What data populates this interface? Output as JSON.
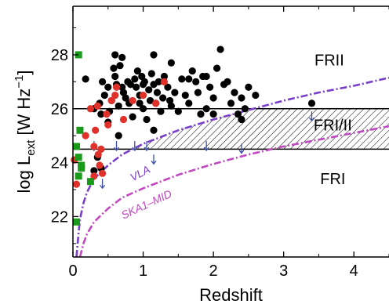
{
  "chart_data": {
    "type": "scatter",
    "xlabel": "Redshift",
    "ylabel": "log L",
    "ylabel_sub": "ext",
    "ylabel_units": " [W Hz",
    "ylabel_exp": "−1",
    "ylabel_close": "]",
    "xlim": [
      0,
      4.5
    ],
    "ylim": [
      20.5,
      29.8
    ],
    "x_ticks": [
      0,
      1,
      2,
      3,
      4
    ],
    "y_ticks": [
      22,
      24,
      26,
      28
    ],
    "x_tick_labels": [
      "0",
      "1",
      "2",
      "3",
      "4"
    ],
    "y_tick_labels": [
      "22",
      "24",
      "26",
      "28"
    ],
    "grid": false,
    "colors": {
      "black_points": "#000000",
      "red_points": "#e0302a",
      "green_points": "#1a9a1a",
      "vla_curve": "#7a3fc8",
      "ska_curve": "#c048c0",
      "arrows": "#3b4fa8",
      "hatch": "#000000"
    },
    "hlines": [
      {
        "y": 26.0
      },
      {
        "y": 24.5
      }
    ],
    "regions": [
      {
        "label": "FRII",
        "x": 3.65,
        "y": 27.6
      },
      {
        "label": "FRI/II",
        "x": 3.7,
        "y": 25.2
      },
      {
        "label": "FRI",
        "x": 3.7,
        "y": 23.2
      }
    ],
    "curves": [
      {
        "name": "VLA",
        "label_x": 0.85,
        "label_y": 23.3,
        "points": [
          [
            0.05,
            20.5
          ],
          [
            0.08,
            21.4
          ],
          [
            0.1,
            21.9
          ],
          [
            0.15,
            22.5
          ],
          [
            0.2,
            22.9
          ],
          [
            0.3,
            23.4
          ],
          [
            0.5,
            23.9
          ],
          [
            0.7,
            24.3
          ],
          [
            1.0,
            24.7
          ],
          [
            1.5,
            25.2
          ],
          [
            2.0,
            25.6
          ],
          [
            2.5,
            25.95
          ],
          [
            3.0,
            26.3
          ],
          [
            3.5,
            26.6
          ],
          [
            4.0,
            26.85
          ],
          [
            4.5,
            27.15
          ]
        ]
      },
      {
        "name": "SKA1–MID",
        "label_x": 0.72,
        "label_y": 21.9,
        "points": [
          [
            0.1,
            20.5
          ],
          [
            0.15,
            21.0
          ],
          [
            0.2,
            21.35
          ],
          [
            0.3,
            21.8
          ],
          [
            0.5,
            22.3
          ],
          [
            0.7,
            22.7
          ],
          [
            1.0,
            23.05
          ],
          [
            1.5,
            23.55
          ],
          [
            2.0,
            23.95
          ],
          [
            2.5,
            24.3
          ],
          [
            3.0,
            24.6
          ],
          [
            3.5,
            24.85
          ],
          [
            4.0,
            25.1
          ],
          [
            4.5,
            25.35
          ]
        ]
      }
    ],
    "series": [
      {
        "marker": "circle",
        "color": "black",
        "points": [
          [
            0.18,
            27.1
          ],
          [
            0.38,
            26.2
          ],
          [
            0.42,
            27.0
          ],
          [
            0.45,
            26.5
          ],
          [
            0.5,
            26.8
          ],
          [
            0.52,
            25.9
          ],
          [
            0.55,
            26.3
          ],
          [
            0.58,
            27.5
          ],
          [
            0.6,
            27.2
          ],
          [
            0.62,
            26.9
          ],
          [
            0.65,
            26.1
          ],
          [
            0.67,
            27.6
          ],
          [
            0.7,
            27.9
          ],
          [
            0.72,
            26.6
          ],
          [
            0.75,
            26.4
          ],
          [
            0.78,
            27.0
          ],
          [
            0.8,
            26.2
          ],
          [
            0.82,
            26.9
          ],
          [
            0.85,
            25.7
          ],
          [
            0.88,
            27.1
          ],
          [
            0.9,
            26.8
          ],
          [
            0.92,
            27.4
          ],
          [
            0.95,
            26.5
          ],
          [
            0.98,
            27.2
          ],
          [
            1.0,
            26.0
          ],
          [
            1.02,
            27.0
          ],
          [
            1.05,
            25.6
          ],
          [
            1.08,
            26.7
          ],
          [
            1.1,
            26.3
          ],
          [
            1.12,
            27.3
          ],
          [
            1.15,
            26.9
          ],
          [
            1.18,
            26.2
          ],
          [
            1.2,
            26.6
          ],
          [
            1.22,
            27.0
          ],
          [
            1.25,
            25.9
          ],
          [
            1.28,
            26.4
          ],
          [
            1.3,
            27.2
          ],
          [
            1.35,
            26.8
          ],
          [
            1.38,
            26.3
          ],
          [
            1.4,
            27.7
          ],
          [
            1.45,
            26.6
          ],
          [
            1.5,
            25.9
          ],
          [
            1.55,
            27.1
          ],
          [
            1.6,
            26.5
          ],
          [
            1.65,
            26.2
          ],
          [
            1.7,
            27.4
          ],
          [
            1.75,
            27.0
          ],
          [
            1.78,
            26.6
          ],
          [
            1.82,
            25.8
          ],
          [
            1.85,
            27.2
          ],
          [
            1.9,
            26.0
          ],
          [
            1.95,
            26.8
          ],
          [
            2.0,
            26.4
          ],
          [
            2.05,
            27.5
          ],
          [
            2.1,
            28.2
          ],
          [
            2.15,
            26.9
          ],
          [
            2.2,
            27.0
          ],
          [
            2.25,
            26.2
          ],
          [
            2.3,
            26.6
          ],
          [
            2.35,
            25.8
          ],
          [
            2.4,
            26.4
          ],
          [
            2.45,
            26.0
          ],
          [
            2.5,
            26.8
          ],
          [
            2.6,
            26.5
          ],
          [
            1.15,
            28.0
          ],
          [
            0.6,
            28.0
          ],
          [
            1.4,
            26.1
          ],
          [
            0.4,
            25.8
          ],
          [
            0.3,
            26.0
          ],
          [
            0.5,
            25.5
          ],
          [
            0.7,
            26.8
          ],
          [
            1.0,
            26.9
          ],
          [
            1.65,
            27.1
          ],
          [
            1.9,
            27.2
          ],
          [
            2.0,
            25.8
          ],
          [
            0.35,
            24.2
          ],
          [
            0.3,
            23.7
          ],
          [
            0.4,
            23.8
          ],
          [
            0.65,
            25.0
          ],
          [
            1.15,
            25.2
          ],
          [
            0.95,
            26.2
          ],
          [
            2.4,
            25.6
          ],
          [
            3.4,
            26.2
          ]
        ]
      },
      {
        "marker": "circle",
        "color": "red",
        "points": [
          [
            0.02,
            24.1
          ],
          [
            0.05,
            23.2
          ],
          [
            0.18,
            25.0
          ],
          [
            0.25,
            26.0
          ],
          [
            0.32,
            25.2
          ],
          [
            0.35,
            26.1
          ],
          [
            0.38,
            23.9
          ],
          [
            0.4,
            24.5
          ],
          [
            0.42,
            23.6
          ],
          [
            0.48,
            25.8
          ],
          [
            0.55,
            26.3
          ],
          [
            0.6,
            26.5
          ],
          [
            0.62,
            26.8
          ],
          [
            0.72,
            25.6
          ],
          [
            0.85,
            26.3
          ],
          [
            1.0,
            26.5
          ],
          [
            1.18,
            26.2
          ],
          [
            1.3,
            27.0
          ],
          [
            0.3,
            23.5
          ],
          [
            0.36,
            24.3
          ],
          [
            0.5,
            25.4
          ],
          [
            0.3,
            24.6
          ]
        ]
      },
      {
        "marker": "square",
        "color": "green",
        "points": [
          [
            0.08,
            28.0
          ],
          [
            0.1,
            25.2
          ],
          [
            0.05,
            24.6
          ],
          [
            0.08,
            24.2
          ],
          [
            0.12,
            23.8
          ],
          [
            0.08,
            23.5
          ],
          [
            0.25,
            23.3
          ],
          [
            0.05,
            21.8
          ],
          [
            0.12,
            23.9
          ]
        ]
      }
    ],
    "upper_limits": [
      [
        0.3,
        24.8
      ],
      [
        0.42,
        23.4
      ],
      [
        0.62,
        24.8
      ],
      [
        0.88,
        24.8
      ],
      [
        1.05,
        24.8
      ],
      [
        1.15,
        24.3
      ],
      [
        1.9,
        24.8
      ],
      [
        2.4,
        24.7
      ],
      [
        3.4,
        25.9
      ]
    ]
  }
}
